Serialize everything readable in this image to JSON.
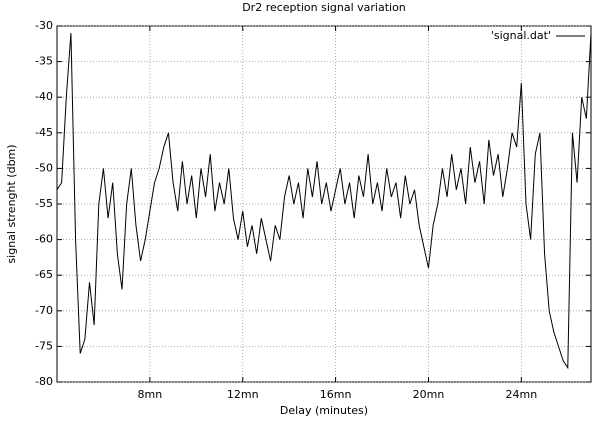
{
  "chart_data": {
    "type": "line",
    "title": "Dr2 reception signal variation",
    "x_label": "Delay (minutes)",
    "y_label": "signal strenght  (dbm)",
    "x": [
      4.0,
      4.2,
      4.4,
      4.6,
      4.8,
      5.0,
      5.2,
      5.4,
      5.6,
      5.8,
      6.0,
      6.2,
      6.4,
      6.6,
      6.8,
      7.0,
      7.2,
      7.4,
      7.6,
      7.8,
      8.0,
      8.2,
      8.4,
      8.6,
      8.8,
      9.0,
      9.2,
      9.4,
      9.6,
      9.8,
      10.0,
      10.2,
      10.4,
      10.6,
      10.8,
      11.0,
      11.2,
      11.4,
      11.6,
      11.8,
      12.0,
      12.2,
      12.4,
      12.6,
      12.8,
      13.0,
      13.2,
      13.4,
      13.6,
      13.8,
      14.0,
      14.2,
      14.4,
      14.6,
      14.8,
      15.0,
      15.2,
      15.4,
      15.6,
      15.8,
      16.0,
      16.2,
      16.4,
      16.6,
      16.8,
      17.0,
      17.2,
      17.4,
      17.6,
      17.8,
      18.0,
      18.2,
      18.4,
      18.6,
      18.8,
      19.0,
      19.2,
      19.4,
      19.6,
      19.8,
      20.0,
      20.2,
      20.4,
      20.6,
      20.8,
      21.0,
      21.2,
      21.4,
      21.6,
      21.8,
      22.0,
      22.2,
      22.4,
      22.6,
      22.8,
      23.0,
      23.2,
      23.4,
      23.6,
      23.8,
      24.0,
      24.2,
      24.4,
      24.6,
      24.8,
      25.0,
      25.2,
      25.4,
      25.6,
      25.8,
      26.0,
      26.2,
      26.4,
      26.6,
      26.8,
      27.0
    ],
    "series": [
      {
        "name": "'signal.dat'",
        "color": "#000000",
        "values": [
          -53,
          -52,
          -40,
          -31,
          -60,
          -76,
          -74,
          -66,
          -72,
          -55,
          -50,
          -57,
          -52,
          -62,
          -67,
          -55,
          -50,
          -58,
          -63,
          -60,
          -56,
          -52,
          -50,
          -47,
          -45,
          -52,
          -56,
          -49,
          -55,
          -51,
          -57,
          -50,
          -54,
          -48,
          -56,
          -52,
          -55,
          -50,
          -57,
          -60,
          -56,
          -61,
          -58,
          -62,
          -57,
          -60,
          -63,
          -58,
          -60,
          -54,
          -51,
          -55,
          -52,
          -57,
          -50,
          -54,
          -49,
          -55,
          -52,
          -56,
          -53,
          -50,
          -55,
          -52,
          -57,
          -51,
          -54,
          -48,
          -55,
          -52,
          -56,
          -50,
          -54,
          -52,
          -57,
          -51,
          -55,
          -53,
          -58,
          -61,
          -64,
          -58,
          -55,
          -50,
          -54,
          -48,
          -53,
          -50,
          -55,
          -47,
          -52,
          -49,
          -55,
          -46,
          -51,
          -48,
          -54,
          -50,
          -45,
          -47,
          -38,
          -55,
          -60,
          -48,
          -45,
          -62,
          -70,
          -73,
          -75,
          -77,
          -78,
          -45,
          -52,
          -40,
          -43,
          -31
        ]
      }
    ],
    "xlim": [
      4,
      27
    ],
    "xticks": [
      {
        "value": 8,
        "label": "8mn"
      },
      {
        "value": 12,
        "label": "12mn"
      },
      {
        "value": 16,
        "label": "16mn"
      },
      {
        "value": 20,
        "label": "20mn"
      },
      {
        "value": 24,
        "label": "24mn"
      }
    ],
    "ylim": [
      -80,
      -30
    ],
    "yticks": [
      -80,
      -75,
      -70,
      -65,
      -60,
      -55,
      -50,
      -45,
      -40,
      -35,
      -30
    ],
    "grid": true,
    "legend": "top-right"
  }
}
